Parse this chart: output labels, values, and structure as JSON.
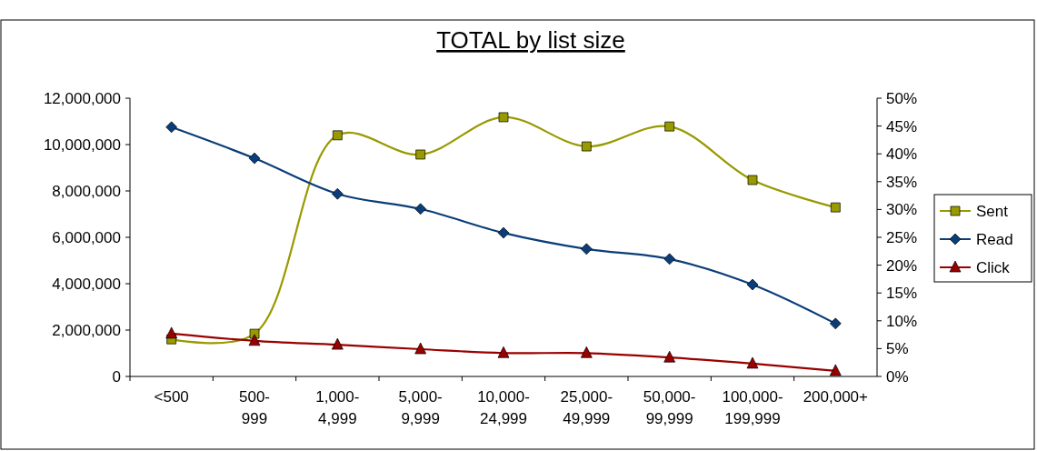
{
  "chart_data": {
    "type": "line",
    "title": "TOTAL by list size",
    "categories": [
      "<500",
      "500-999",
      "1,000-4,999",
      "5,000-9,999",
      "10,000-24,999",
      "25,000-49,999",
      "50,000-99,999",
      "100,000-199,999",
      "200,000+"
    ],
    "series": [
      {
        "name": "Sent",
        "color": "#999900",
        "marker": "square",
        "values": [
          1600000,
          1840000,
          10400000,
          9570000,
          11180000,
          9920000,
          10780000,
          8470000,
          7290000
        ]
      },
      {
        "name": "Read",
        "color": "#0b3e78",
        "marker": "diamond",
        "axis": "y2",
        "values": [
          44.8,
          39.2,
          32.8,
          30.1,
          25.8,
          22.9,
          21.1,
          16.5,
          9.5
        ]
      },
      {
        "name": "Click",
        "color": "#990000",
        "marker": "triangle",
        "axis": "y2",
        "values": [
          7.7,
          6.4,
          5.7,
          4.9,
          4.2,
          4.2,
          3.4,
          2.3,
          1.0
        ]
      }
    ],
    "ylim": [
      0,
      12000000
    ],
    "yticks": [
      {
        "value": 0,
        "label": "0"
      },
      {
        "value": 2000000,
        "label": "2,000,000"
      },
      {
        "value": 4000000,
        "label": "4,000,000"
      },
      {
        "value": 6000000,
        "label": "6,000,000"
      },
      {
        "value": 8000000,
        "label": "8,000,000"
      },
      {
        "value": 10000000,
        "label": "10,000,000"
      },
      {
        "value": 12000000,
        "label": "12,000,000"
      }
    ],
    "y2lim": [
      0,
      50
    ],
    "y2ticks": [
      {
        "value": 0,
        "label": "0%"
      },
      {
        "value": 5,
        "label": "5%"
      },
      {
        "value": 10,
        "label": "10%"
      },
      {
        "value": 15,
        "label": "15%"
      },
      {
        "value": 20,
        "label": "20%"
      },
      {
        "value": 25,
        "label": "25%"
      },
      {
        "value": 30,
        "label": "30%"
      },
      {
        "value": 35,
        "label": "35%"
      },
      {
        "value": 40,
        "label": "40%"
      },
      {
        "value": 45,
        "label": "45%"
      },
      {
        "value": 50,
        "label": "50%"
      }
    ],
    "legend": "right",
    "grid": false
  }
}
